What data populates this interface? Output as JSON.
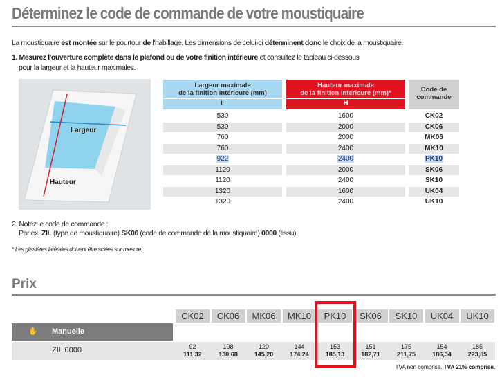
{
  "title": "Déterminez le code de commande de votre moustiquaire",
  "intro": {
    "p1": "La moustiquaire ",
    "b1": "est montée",
    "p2": " sur le pourtour ",
    "b2": "de",
    "p3": " l'habillage. Les dimensions de celui-ci ",
    "b3": "déterminent donc",
    "p4": " le choix de la moustiquaire."
  },
  "step1": {
    "bold": "1. Mesurez l'ouverture complète dans le plafond ou de votre finition intérieure",
    "rest": " et consultez le tableau ci-dessous",
    "line2": "pour la largeur et la hauteur maximales."
  },
  "image": {
    "largeur": "Largeur",
    "hauteur": "Hauteur"
  },
  "size_table": {
    "headers": {
      "l_title1": "Largeur maximale",
      "l_title2": "de la finition intérieure (mm)",
      "l_sym": "L",
      "h_title1": "Hauteur maximale",
      "h_title2": "de la finition intérieure (mm)*",
      "h_sym": "H",
      "code1": "Code de",
      "code2": "commande"
    },
    "rows": [
      {
        "l": "530",
        "h": "1600",
        "code": "CK02"
      },
      {
        "l": "530",
        "h": "2000",
        "code": "CK06"
      },
      {
        "l": "760",
        "h": "2000",
        "code": "MK06"
      },
      {
        "l": "760",
        "h": "2400",
        "code": "MK10"
      },
      {
        "l": "922",
        "h": "2400",
        "code": "PK10",
        "highlight": true
      },
      {
        "l": "1120",
        "h": "2000",
        "code": "SK06"
      },
      {
        "l": "1120",
        "h": "2400",
        "code": "SK10"
      },
      {
        "l": "1320",
        "h": "1600",
        "code": "UK04"
      },
      {
        "l": "1320",
        "h": "2400",
        "code": "UK10"
      }
    ]
  },
  "step2": {
    "title": "2. Notez le code de commande :",
    "ex": "Par ex. ",
    "zil": "ZIL",
    "t1": " (type de moustiquaire) ",
    "sk": "SK06",
    "t2": " (code de commande de la moustiquaire) ",
    "zero": "0000",
    "t3": " (tissu)"
  },
  "footnote": "* Les glissières latérales doivent être sciées sur mesure.",
  "prix": {
    "title": "Prix",
    "category": "Manuelle",
    "product": "ZIL 0000",
    "codes": [
      "CK02",
      "CK06",
      "MK06",
      "MK10",
      "PK10",
      "SK06",
      "SK10",
      "UK04",
      "UK10"
    ],
    "excl": [
      "92",
      "108",
      "120",
      "144",
      "153",
      "151",
      "175",
      "154",
      "185"
    ],
    "incl": [
      "111,32",
      "130,68",
      "145,20",
      "174,24",
      "185,13",
      "182,71",
      "211,75",
      "186,34",
      "223,85"
    ],
    "selected": "PK10",
    "note_plain": "TVA non comprise. ",
    "note_bold": "TVA 21% comprise."
  },
  "colors": {
    "blue": "#a9d8f2",
    "red": "#e0141e",
    "gray_header": "#d0d0d0",
    "dark": "#7c7c7c"
  }
}
